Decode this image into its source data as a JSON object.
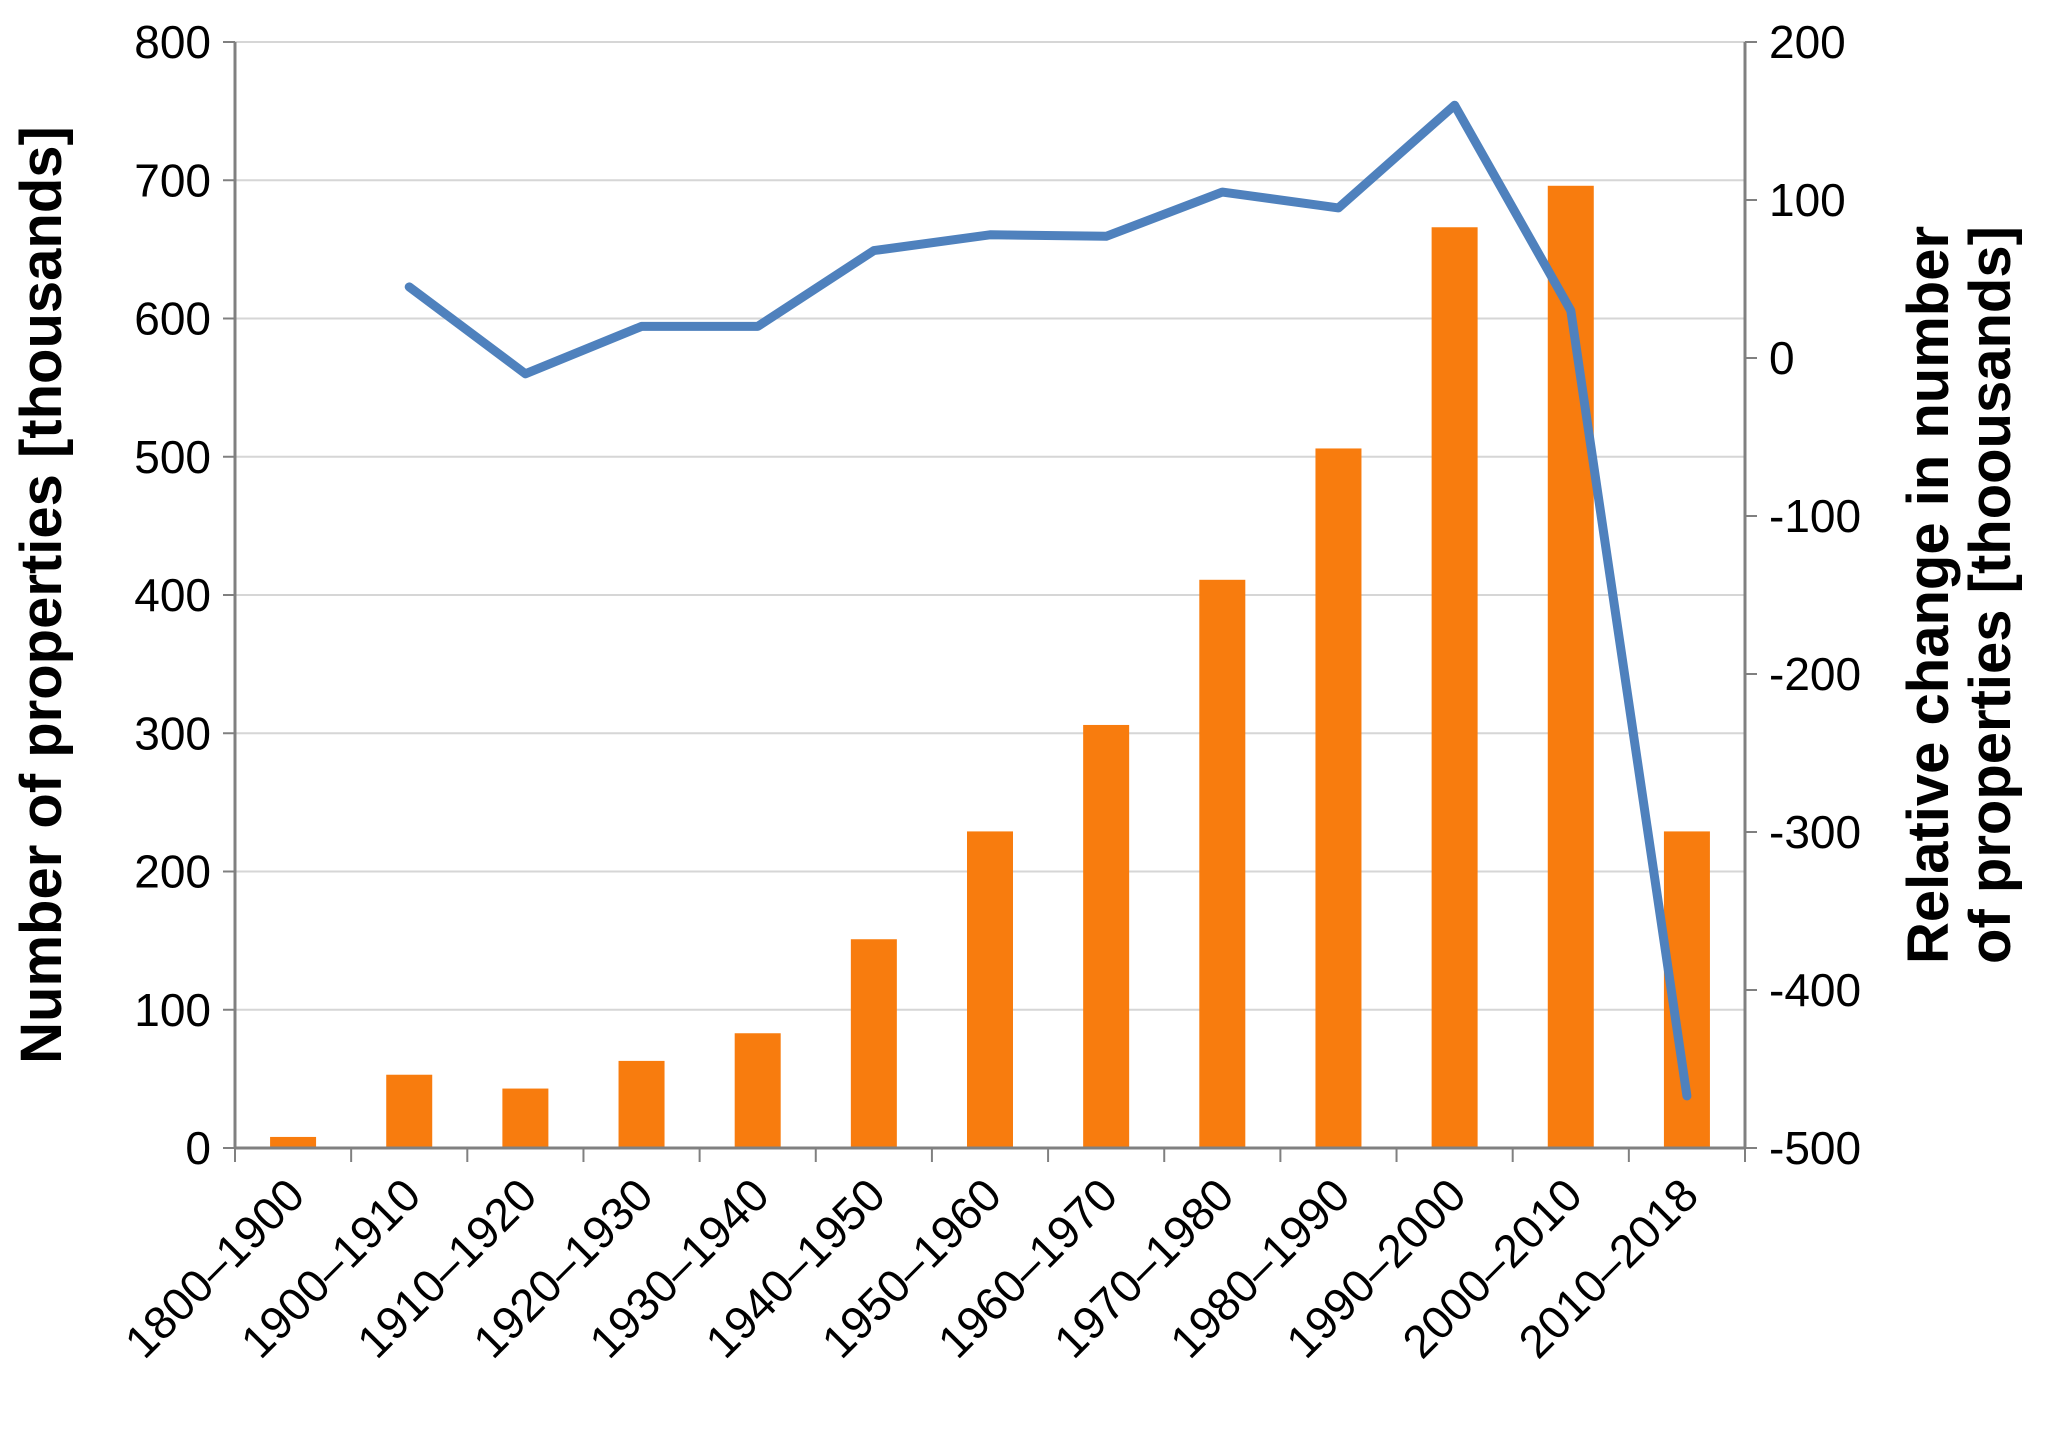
{
  "page": {
    "background": "#FFFFFF"
  },
  "chart_data": {
    "type": "combo-bar-line",
    "title": "",
    "categories": [
      "1800–1900",
      "1900–1910",
      "1910–1920",
      "1920–1930",
      "1930–1940",
      "1940–1950",
      "1950–1960",
      "1960–1970",
      "1970–1980",
      "1980–1990",
      "1990–2000",
      "2000–2010",
      "2010–2018"
    ],
    "series": [
      {
        "name": "Number of properties",
        "type": "bar",
        "axis": "left",
        "color": "#F87C0E",
        "values": [
          8,
          53,
          43,
          63,
          83,
          151,
          229,
          306,
          411,
          506,
          666,
          696,
          229
        ]
      },
      {
        "name": "Relative change in number of properties",
        "type": "line",
        "axis": "right",
        "color": "#4F81BD",
        "values": [
          null,
          45,
          -10,
          20,
          20,
          68,
          78,
          77,
          105,
          95,
          160,
          30,
          -467
        ]
      }
    ],
    "left_axis": {
      "title": "Number of properties [thousands]",
      "min": 0,
      "max": 800,
      "step": 100
    },
    "right_axis": {
      "title_line1": "Relative change in number",
      "title_line2": "of properties [thoousands]",
      "min": -500,
      "max": 200,
      "step": 100
    },
    "grid": {
      "show": true,
      "color": "#D6D6D6"
    },
    "axis_color": "#808080",
    "text_color": "#000000",
    "legend_position": "none"
  }
}
